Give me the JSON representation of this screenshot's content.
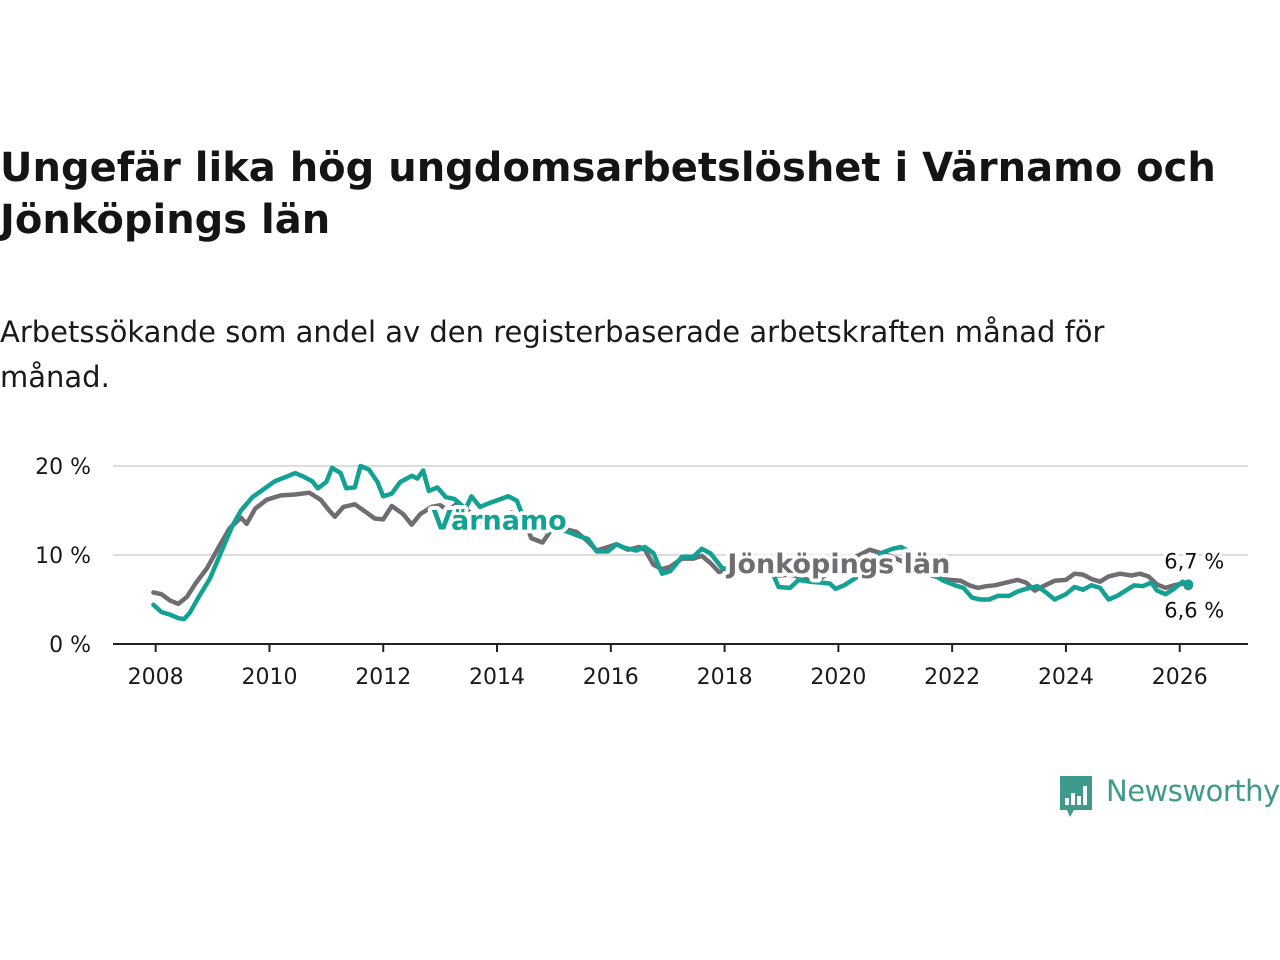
{
  "title": "Ungefär lika hög ungdomsarbetslöshet i Värnamo och Jönköpings län",
  "subtitle": "Arbetssökande som andel av den registerbaserade arbetskraften månad för månad.",
  "logo": {
    "text": "Newsworthy",
    "icon": "newsworthy-chart-icon"
  },
  "colors": {
    "varnamo": "#12a193",
    "jonkoping": "#6f6d72",
    "grid": "#dddddd",
    "axis": "#222222"
  },
  "chart_data": {
    "type": "line",
    "title": "Ungefär lika hög ungdomsarbetslöshet i Värnamo och Jönköpings län",
    "xlabel": "",
    "ylabel": "",
    "xlim": [
      2007.25,
      2027.2
    ],
    "ylim": [
      0,
      20
    ],
    "x_ticks": [
      2008,
      2010,
      2012,
      2014,
      2016,
      2018,
      2020,
      2022,
      2024,
      2026
    ],
    "x_tick_labels": [
      "2008",
      "2010",
      "2012",
      "2014",
      "2016",
      "2018",
      "2020",
      "2022",
      "2024",
      "2026"
    ],
    "y_ticks": [
      0,
      10,
      20
    ],
    "y_tick_labels": [
      "0 %",
      "10 %",
      "20 %"
    ],
    "grid": true,
    "series": [
      {
        "name": "Jönköpings län",
        "label": "Jönköpings län",
        "color": "#6f6d72",
        "end_label": "6,6 %",
        "points": [
          [
            2007.96,
            5.8
          ],
          [
            2008.1,
            5.6
          ],
          [
            2008.25,
            4.9
          ],
          [
            2008.4,
            4.5
          ],
          [
            2008.55,
            5.3
          ],
          [
            2008.7,
            6.8
          ],
          [
            2008.9,
            8.5
          ],
          [
            2009.1,
            10.8
          ],
          [
            2009.3,
            13.0
          ],
          [
            2009.5,
            14.2
          ],
          [
            2009.6,
            13.5
          ],
          [
            2009.75,
            15.2
          ],
          [
            2009.95,
            16.2
          ],
          [
            2010.2,
            16.7
          ],
          [
            2010.45,
            16.8
          ],
          [
            2010.7,
            17.0
          ],
          [
            2010.9,
            16.2
          ],
          [
            2011.05,
            15.0
          ],
          [
            2011.15,
            14.3
          ],
          [
            2011.3,
            15.4
          ],
          [
            2011.5,
            15.7
          ],
          [
            2011.7,
            14.8
          ],
          [
            2011.85,
            14.1
          ],
          [
            2012.0,
            14.0
          ],
          [
            2012.15,
            15.5
          ],
          [
            2012.35,
            14.6
          ],
          [
            2012.5,
            13.4
          ],
          [
            2012.65,
            14.6
          ],
          [
            2012.85,
            15.4
          ],
          [
            2013.0,
            15.6
          ],
          [
            2013.15,
            15.0
          ],
          [
            2013.3,
            15.8
          ],
          [
            2013.5,
            14.9
          ],
          [
            2013.7,
            13.9
          ],
          [
            2013.85,
            12.8
          ],
          [
            2014.25,
            14.8
          ],
          [
            2014.5,
            13.8
          ],
          [
            2014.6,
            11.9
          ],
          [
            2014.8,
            11.4
          ],
          [
            2014.95,
            12.8
          ],
          [
            2015.2,
            12.9
          ],
          [
            2015.4,
            12.6
          ],
          [
            2015.6,
            11.5
          ],
          [
            2015.75,
            10.5
          ],
          [
            2015.95,
            10.9
          ],
          [
            2016.1,
            11.2
          ],
          [
            2016.3,
            10.6
          ],
          [
            2016.5,
            10.9
          ],
          [
            2016.6,
            10.6
          ],
          [
            2016.75,
            8.9
          ],
          [
            2016.9,
            8.4
          ],
          [
            2017.05,
            8.7
          ],
          [
            2017.25,
            9.6
          ],
          [
            2017.45,
            9.6
          ],
          [
            2017.6,
            9.9
          ],
          [
            2017.75,
            9.1
          ],
          [
            2017.9,
            8.1
          ],
          [
            2018.05,
            8.3
          ],
          [
            2018.25,
            8.7
          ],
          [
            2018.45,
            8.6
          ],
          [
            2018.65,
            8.1
          ],
          [
            2018.8,
            7.8
          ],
          [
            2018.95,
            7.7
          ],
          [
            2019.15,
            7.8
          ],
          [
            2019.35,
            7.5
          ],
          [
            2019.55,
            7.0
          ],
          [
            2019.7,
            7.4
          ],
          [
            2019.85,
            8.1
          ],
          [
            2020.0,
            8.4
          ],
          [
            2020.2,
            9.5
          ],
          [
            2020.4,
            10.1
          ],
          [
            2020.55,
            10.6
          ],
          [
            2020.75,
            10.2
          ],
          [
            2020.95,
            9.8
          ],
          [
            2021.15,
            9.2
          ],
          [
            2021.35,
            8.5
          ],
          [
            2021.55,
            7.9
          ],
          [
            2021.75,
            7.5
          ],
          [
            2021.95,
            7.2
          ],
          [
            2022.15,
            7.1
          ],
          [
            2022.3,
            6.6
          ],
          [
            2022.45,
            6.3
          ],
          [
            2022.6,
            6.5
          ],
          [
            2022.75,
            6.6
          ],
          [
            2022.95,
            6.9
          ],
          [
            2023.15,
            7.2
          ],
          [
            2023.3,
            6.9
          ],
          [
            2023.45,
            6.0
          ],
          [
            2023.6,
            6.5
          ],
          [
            2023.8,
            7.1
          ],
          [
            2024.0,
            7.2
          ],
          [
            2024.15,
            7.9
          ],
          [
            2024.3,
            7.8
          ],
          [
            2024.45,
            7.3
          ],
          [
            2024.6,
            7.0
          ],
          [
            2024.75,
            7.6
          ],
          [
            2024.95,
            7.9
          ],
          [
            2025.15,
            7.7
          ],
          [
            2025.3,
            7.9
          ],
          [
            2025.45,
            7.6
          ],
          [
            2025.6,
            6.7
          ],
          [
            2025.75,
            6.3
          ],
          [
            2025.9,
            6.6
          ],
          [
            2026.05,
            6.8
          ],
          [
            2026.15,
            6.6
          ]
        ]
      },
      {
        "name": "Värnamo",
        "label": "Värnamo",
        "color": "#12a193",
        "end_label": "6,7 %",
        "points": [
          [
            2007.96,
            4.4
          ],
          [
            2008.1,
            3.6
          ],
          [
            2008.25,
            3.3
          ],
          [
            2008.4,
            2.9
          ],
          [
            2008.5,
            2.8
          ],
          [
            2008.6,
            3.5
          ],
          [
            2008.75,
            5.2
          ],
          [
            2008.95,
            7.3
          ],
          [
            2009.15,
            10.3
          ],
          [
            2009.35,
            13.3
          ],
          [
            2009.5,
            15.0
          ],
          [
            2009.7,
            16.5
          ],
          [
            2009.9,
            17.4
          ],
          [
            2010.1,
            18.3
          ],
          [
            2010.3,
            18.8
          ],
          [
            2010.45,
            19.2
          ],
          [
            2010.6,
            18.8
          ],
          [
            2010.75,
            18.3
          ],
          [
            2010.85,
            17.5
          ],
          [
            2011.0,
            18.2
          ],
          [
            2011.1,
            19.8
          ],
          [
            2011.25,
            19.2
          ],
          [
            2011.35,
            17.5
          ],
          [
            2011.5,
            17.6
          ],
          [
            2011.6,
            20.0
          ],
          [
            2011.75,
            19.6
          ],
          [
            2011.9,
            18.2
          ],
          [
            2012.0,
            16.6
          ],
          [
            2012.15,
            16.9
          ],
          [
            2012.3,
            18.2
          ],
          [
            2012.5,
            18.9
          ],
          [
            2012.6,
            18.6
          ],
          [
            2012.7,
            19.5
          ],
          [
            2012.8,
            17.2
          ],
          [
            2012.95,
            17.6
          ],
          [
            2013.1,
            16.5
          ],
          [
            2013.25,
            16.3
          ],
          [
            2013.45,
            15.2
          ],
          [
            2013.55,
            16.6
          ],
          [
            2013.7,
            15.4
          ],
          [
            2013.85,
            15.8
          ],
          [
            2014.2,
            16.6
          ],
          [
            2014.35,
            16.1
          ],
          [
            2014.5,
            13.6
          ],
          [
            2014.65,
            13.3
          ],
          [
            2014.85,
            12.6
          ],
          [
            2015.05,
            13.0
          ],
          [
            2015.25,
            12.6
          ],
          [
            2015.45,
            12.1
          ],
          [
            2015.6,
            11.8
          ],
          [
            2015.75,
            10.4
          ],
          [
            2015.95,
            10.4
          ],
          [
            2016.1,
            11.2
          ],
          [
            2016.25,
            10.8
          ],
          [
            2016.45,
            10.5
          ],
          [
            2016.6,
            10.9
          ],
          [
            2016.75,
            10.2
          ],
          [
            2016.9,
            7.9
          ],
          [
            2017.05,
            8.2
          ],
          [
            2017.25,
            9.8
          ],
          [
            2017.45,
            9.8
          ],
          [
            2017.6,
            10.7
          ],
          [
            2017.75,
            10.2
          ],
          [
            2017.95,
            8.6
          ],
          [
            2018.1,
            8.2
          ],
          [
            2018.25,
            9.3
          ],
          [
            2018.4,
            9.1
          ],
          [
            2018.5,
            8.5
          ],
          [
            2018.65,
            8.2
          ],
          [
            2018.8,
            8.6
          ],
          [
            2018.95,
            6.4
          ],
          [
            2019.15,
            6.3
          ],
          [
            2019.3,
            7.2
          ],
          [
            2019.5,
            7.0
          ],
          [
            2019.7,
            6.9
          ],
          [
            2019.85,
            6.8
          ],
          [
            2019.95,
            6.2
          ],
          [
            2020.1,
            6.6
          ],
          [
            2020.3,
            7.4
          ],
          [
            2020.55,
            8.9
          ],
          [
            2020.75,
            10.2
          ],
          [
            2020.95,
            10.7
          ],
          [
            2021.1,
            10.9
          ],
          [
            2021.3,
            10.2
          ],
          [
            2021.5,
            9.3
          ],
          [
            2021.65,
            7.9
          ],
          [
            2021.85,
            7.1
          ],
          [
            2022.05,
            6.6
          ],
          [
            2022.2,
            6.3
          ],
          [
            2022.35,
            5.2
          ],
          [
            2022.5,
            5.0
          ],
          [
            2022.65,
            5.0
          ],
          [
            2022.8,
            5.4
          ],
          [
            2023.0,
            5.4
          ],
          [
            2023.15,
            5.9
          ],
          [
            2023.3,
            6.2
          ],
          [
            2023.5,
            6.5
          ],
          [
            2023.65,
            5.8
          ],
          [
            2023.8,
            5.0
          ],
          [
            2024.0,
            5.6
          ],
          [
            2024.15,
            6.4
          ],
          [
            2024.3,
            6.1
          ],
          [
            2024.45,
            6.6
          ],
          [
            2024.6,
            6.3
          ],
          [
            2024.75,
            5.0
          ],
          [
            2024.9,
            5.4
          ],
          [
            2025.05,
            6.0
          ],
          [
            2025.2,
            6.6
          ],
          [
            2025.35,
            6.5
          ],
          [
            2025.5,
            6.9
          ],
          [
            2025.6,
            6.0
          ],
          [
            2025.75,
            5.6
          ],
          [
            2025.9,
            6.2
          ],
          [
            2026.05,
            7.0
          ],
          [
            2026.15,
            6.7
          ]
        ]
      }
    ]
  }
}
